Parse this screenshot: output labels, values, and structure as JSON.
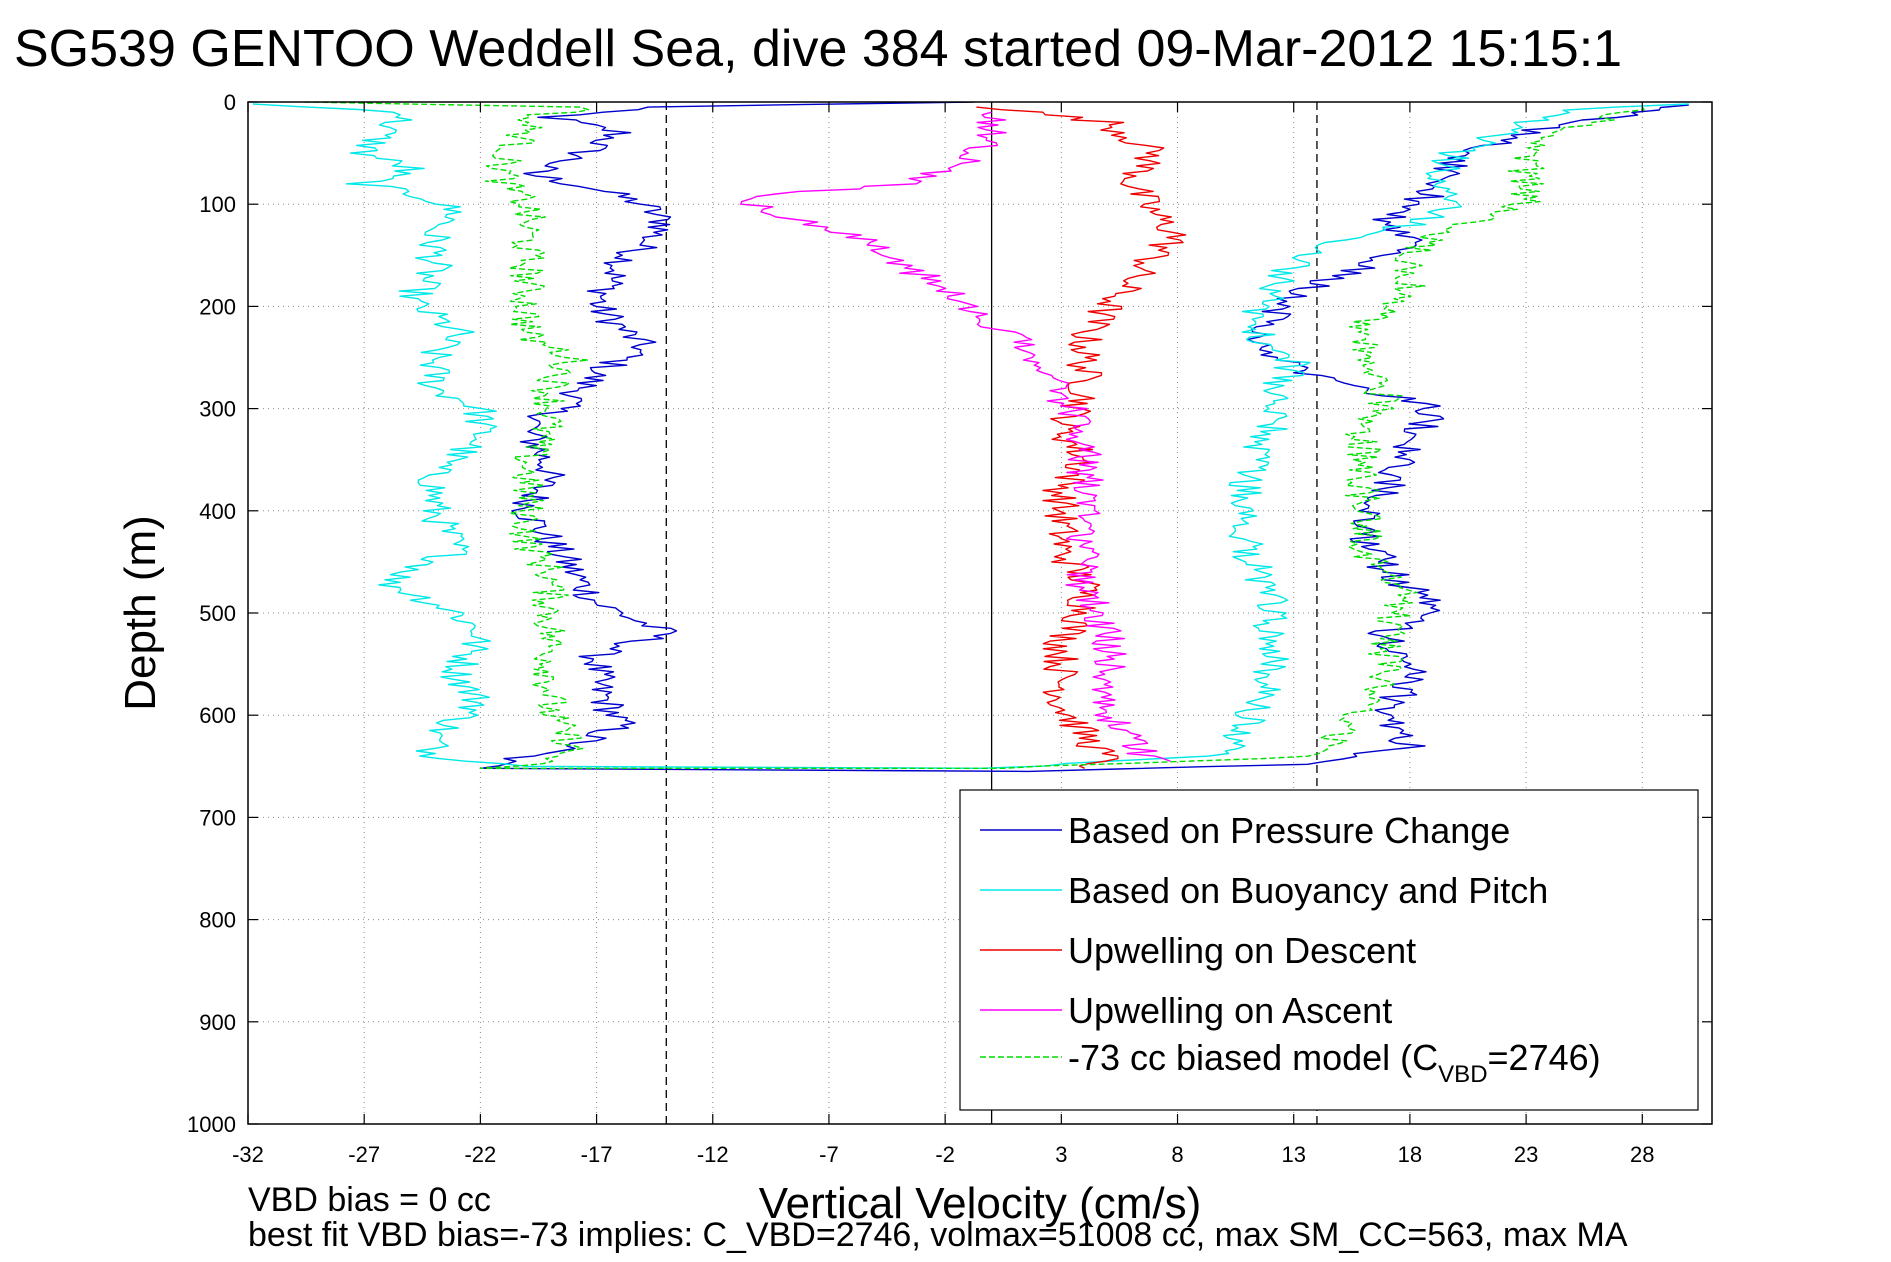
{
  "chart_data": {
    "type": "line",
    "title": "SG539 GENTOO Weddell Sea, dive 384 started 09-Mar-2012 15:15:1",
    "xlabel": "Vertical Velocity (cm/s)",
    "ylabel": "Depth (m)",
    "xlim": [
      -32,
      31
    ],
    "ylim": [
      0,
      1000
    ],
    "y_reversed": true,
    "grid": true,
    "x_ticks": [
      -32,
      -27,
      -22,
      -17,
      -12,
      -7,
      -2,
      3,
      8,
      13,
      18,
      23,
      28
    ],
    "y_ticks": [
      0,
      100,
      200,
      300,
      400,
      500,
      600,
      700,
      800,
      900,
      1000
    ],
    "reference_lines": [
      {
        "x": -14,
        "style": "dashed",
        "color": "#000000"
      },
      {
        "x": 0,
        "style": "solid",
        "color": "#000000"
      },
      {
        "x": 14,
        "style": "dashed",
        "color": "#000000"
      }
    ],
    "legend_position": "lower-right",
    "series": [
      {
        "name": "Based on Pressure Change",
        "color": "#0000cc",
        "style": "solid",
        "points": [
          [
            -1,
            0
          ],
          [
            -15,
            5
          ],
          [
            -19,
            15
          ],
          [
            -16,
            30
          ],
          [
            -18,
            55
          ],
          [
            -20,
            70
          ],
          [
            -17,
            85
          ],
          [
            -15,
            100
          ],
          [
            -14,
            120
          ],
          [
            -16,
            160
          ],
          [
            -17,
            200
          ],
          [
            -15,
            240
          ],
          [
            -17,
            265
          ],
          [
            -18,
            290
          ],
          [
            -20,
            320
          ],
          [
            -19,
            360
          ],
          [
            -20,
            400
          ],
          [
            -19,
            430
          ],
          [
            -18,
            460
          ],
          [
            -17,
            490
          ],
          [
            -15,
            510
          ],
          [
            -14,
            520
          ],
          [
            -17,
            540
          ],
          [
            -17,
            570
          ],
          [
            -16,
            610
          ],
          [
            -18,
            630
          ],
          [
            -21,
            645
          ],
          [
            -22,
            652
          ],
          [
            2,
            655
          ],
          [
            14,
            648
          ],
          [
            18,
            630
          ],
          [
            17,
            600
          ],
          [
            18,
            560
          ],
          [
            17,
            520
          ],
          [
            19,
            490
          ],
          [
            17,
            460
          ],
          [
            16,
            420
          ],
          [
            17,
            380
          ],
          [
            18,
            340
          ],
          [
            19,
            300
          ],
          [
            16,
            280
          ],
          [
            13,
            260
          ],
          [
            11,
            230
          ],
          [
            13,
            190
          ],
          [
            16,
            160
          ],
          [
            18,
            140
          ],
          [
            17,
            110
          ],
          [
            19,
            90
          ],
          [
            20,
            60
          ],
          [
            22,
            35
          ],
          [
            25,
            20
          ],
          [
            30,
            3
          ]
        ]
      },
      {
        "name": "Based on Buoyancy and Pitch",
        "color": "#00e8e8",
        "style": "solid",
        "points": [
          [
            -32,
            2
          ],
          [
            -25,
            10
          ],
          [
            -26,
            25
          ],
          [
            -27,
            50
          ],
          [
            -25,
            65
          ],
          [
            -27,
            80
          ],
          [
            -24,
            95
          ],
          [
            -23,
            110
          ],
          [
            -24,
            125
          ],
          [
            -24,
            160
          ],
          [
            -25,
            195
          ],
          [
            -23,
            225
          ],
          [
            -24,
            245
          ],
          [
            -24,
            280
          ],
          [
            -22,
            300
          ],
          [
            -22,
            330
          ],
          [
            -24,
            360
          ],
          [
            -24,
            400
          ],
          [
            -23,
            440
          ],
          [
            -26,
            470
          ],
          [
            -23,
            500
          ],
          [
            -22,
            520
          ],
          [
            -23,
            560
          ],
          [
            -22,
            590
          ],
          [
            -24,
            620
          ],
          [
            -24,
            640
          ],
          [
            -20,
            650
          ],
          [
            0,
            652
          ],
          [
            10,
            640
          ],
          [
            11,
            610
          ],
          [
            12,
            560
          ],
          [
            12,
            520
          ],
          [
            12,
            480
          ],
          [
            11,
            440
          ],
          [
            11,
            400
          ],
          [
            11,
            360
          ],
          [
            12,
            320
          ],
          [
            12,
            290
          ],
          [
            13,
            255
          ],
          [
            11,
            220
          ],
          [
            12,
            190
          ],
          [
            13,
            160
          ],
          [
            14,
            140
          ],
          [
            18,
            120
          ],
          [
            20,
            100
          ],
          [
            19,
            80
          ],
          [
            20,
            50
          ],
          [
            23,
            20
          ],
          [
            25,
            8
          ],
          [
            30,
            2
          ]
        ]
      },
      {
        "name": "Upwelling on Descent",
        "color": "#ee0000",
        "style": "solid",
        "points": [
          [
            0,
            5
          ],
          [
            5,
            20
          ],
          [
            7,
            50
          ],
          [
            6,
            80
          ],
          [
            7,
            110
          ],
          [
            8,
            130
          ],
          [
            7,
            150
          ],
          [
            6,
            175
          ],
          [
            5,
            200
          ],
          [
            4,
            230
          ],
          [
            4,
            260
          ],
          [
            4,
            290
          ],
          [
            3,
            320
          ],
          [
            4,
            350
          ],
          [
            3,
            380
          ],
          [
            3,
            410
          ],
          [
            3,
            440
          ],
          [
            4,
            470
          ],
          [
            4,
            500
          ],
          [
            3,
            530
          ],
          [
            3,
            560
          ],
          [
            3,
            590
          ],
          [
            4,
            620
          ],
          [
            5,
            645
          ],
          [
            4,
            652
          ]
        ]
      },
      {
        "name": "Upwelling on Ascent",
        "color": "#ff00ff",
        "style": "solid",
        "points": [
          [
            7,
            645
          ],
          [
            6,
            630
          ],
          [
            5,
            600
          ],
          [
            5,
            560
          ],
          [
            5,
            520
          ],
          [
            4,
            480
          ],
          [
            4,
            440
          ],
          [
            4,
            400
          ],
          [
            4,
            360
          ],
          [
            4,
            320
          ],
          [
            3,
            290
          ],
          [
            2,
            260
          ],
          [
            1,
            230
          ],
          [
            -1,
            200
          ],
          [
            -3,
            170
          ],
          [
            -5,
            140
          ],
          [
            -9,
            110
          ],
          [
            -11,
            95
          ],
          [
            -4,
            80
          ],
          [
            -1,
            60
          ],
          [
            0,
            35
          ],
          [
            0,
            10
          ]
        ]
      },
      {
        "name": "-73 cc biased model (C_VBD=2746)",
        "legend_parts": {
          "pre": "-73 cc biased model (C",
          "sub": "VBD",
          "post": "=2746)"
        },
        "color": "#00dd00",
        "style": "dashed",
        "points": [
          [
            -30,
            0
          ],
          [
            -17,
            5
          ],
          [
            -20,
            15
          ],
          [
            -20,
            30
          ],
          [
            -21,
            55
          ],
          [
            -21,
            80
          ],
          [
            -20,
            100
          ],
          [
            -20,
            120
          ],
          [
            -20,
            150
          ],
          [
            -20,
            190
          ],
          [
            -20,
            230
          ],
          [
            -18,
            250
          ],
          [
            -19,
            280
          ],
          [
            -19,
            310
          ],
          [
            -20,
            350
          ],
          [
            -20,
            390
          ],
          [
            -20,
            430
          ],
          [
            -19,
            460
          ],
          [
            -19,
            490
          ],
          [
            -19,
            520
          ],
          [
            -19,
            560
          ],
          [
            -19,
            600
          ],
          [
            -18,
            630
          ],
          [
            -19,
            645
          ],
          [
            -22,
            652
          ],
          [
            0,
            652
          ],
          [
            14,
            640
          ],
          [
            15,
            620
          ],
          [
            16,
            590
          ],
          [
            17,
            560
          ],
          [
            17,
            520
          ],
          [
            18,
            480
          ],
          [
            16,
            440
          ],
          [
            16,
            400
          ],
          [
            16,
            360
          ],
          [
            16,
            320
          ],
          [
            17,
            290
          ],
          [
            16,
            260
          ],
          [
            16,
            220
          ],
          [
            18,
            190
          ],
          [
            18,
            150
          ],
          [
            20,
            120
          ],
          [
            23,
            100
          ],
          [
            23,
            70
          ],
          [
            23,
            40
          ],
          [
            26,
            20
          ],
          [
            28,
            5
          ]
        ]
      }
    ],
    "footer_lines": [
      "VBD bias = 0 cc",
      "best fit VBD bias=-73 implies: C_VBD=2746, volmax=51008 cc, max SM_CC=563, max MA"
    ]
  }
}
